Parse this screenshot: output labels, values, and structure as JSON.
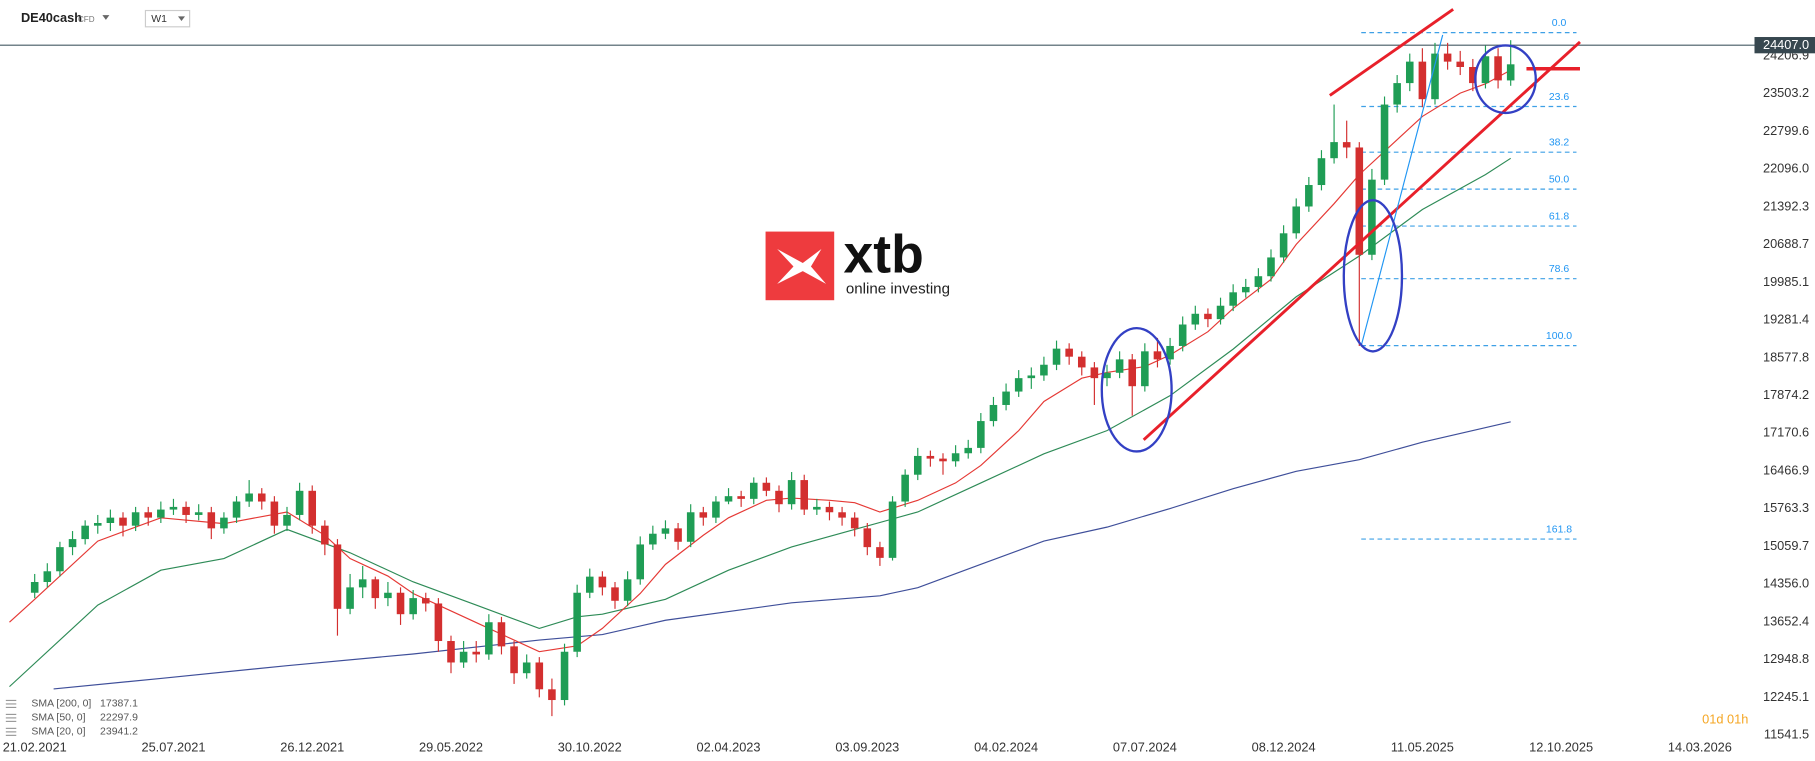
{
  "header": {
    "symbol": "DE40cash",
    "market": "CFD",
    "timeframe": "W1",
    "countdown": "01d 01h"
  },
  "logo": {
    "brand": "xtb",
    "tagline": "online investing"
  },
  "chart_data": {
    "type": "candlestick",
    "up_color": "#1f9d55",
    "down_color": "#d32f2f",
    "xlim": [
      -5.5,
      272.1
    ],
    "ylim": [
      11368,
      25248
    ],
    "xticks": [
      {
        "value": 0,
        "label": "21.02.2021"
      },
      {
        "value": 22,
        "label": "25.07.2021"
      },
      {
        "value": 44,
        "label": "26.12.2021"
      },
      {
        "value": 66,
        "label": "29.05.2022"
      },
      {
        "value": 88,
        "label": "30.10.2022"
      },
      {
        "value": 110,
        "label": "02.04.2023"
      },
      {
        "value": 132,
        "label": "03.09.2023"
      },
      {
        "value": 154,
        "label": "04.02.2024"
      },
      {
        "value": 176,
        "label": "07.07.2024"
      },
      {
        "value": 198,
        "label": "08.12.2024"
      },
      {
        "value": 220,
        "label": "11.05.2025"
      },
      {
        "value": 242,
        "label": "12.10.2025"
      },
      {
        "value": 264,
        "label": "14.03.2026"
      }
    ],
    "yticks": [
      11541.5,
      12245.1,
      12948.8,
      13652.4,
      {
        "value": 14356.0,
        "label": "14356.0"
      },
      15059.7,
      15763.3,
      16466.9,
      17170.6,
      17874.2,
      18577.8,
      19281.4,
      19985.1,
      20688.7,
      21392.3,
      {
        "value": 22096.0,
        "label": "22096.0"
      },
      22799.6,
      23503.2,
      24206.9
    ],
    "current_price": {
      "value": 24407.0,
      "label": "24407.0"
    },
    "fib": {
      "from": 18806,
      "to": 24641,
      "levels": [
        {
          "value": 0,
          "label": "0.0"
        },
        23.6,
        38.2,
        {
          "value": 50,
          "label": "50.0"
        },
        61.8,
        78.6,
        {
          "value": 100,
          "label": "100.0"
        },
        161.8
      ]
    },
    "x": [
      0,
      2,
      4,
      6,
      8,
      10,
      12,
      14,
      16,
      18,
      20,
      22,
      24,
      26,
      28,
      30,
      32,
      34,
      36,
      38,
      40,
      42,
      44,
      46,
      48,
      50,
      52,
      54,
      56,
      58,
      60,
      62,
      64,
      66,
      68,
      70,
      72,
      74,
      76,
      78,
      80,
      82,
      84,
      86,
      88,
      90,
      92,
      94,
      96,
      98,
      100,
      102,
      104,
      106,
      108,
      110,
      112,
      114,
      116,
      118,
      120,
      122,
      124,
      126,
      128,
      130,
      132,
      134,
      136,
      138,
      140,
      142,
      144,
      146,
      148,
      150,
      152,
      154,
      156,
      158,
      160,
      162,
      164,
      166,
      168,
      170,
      172,
      174,
      176,
      178,
      180,
      182,
      184,
      186,
      188,
      190,
      192,
      194,
      196,
      198,
      200,
      202,
      204,
      206,
      208,
      210,
      212,
      214,
      216,
      218,
      220,
      222,
      224,
      226,
      228,
      230,
      232,
      234
    ],
    "open": [
      14200,
      14400,
      14600,
      15050,
      15200,
      15450,
      15500,
      15600,
      15450,
      15700,
      15600,
      15750,
      15800,
      15650,
      15700,
      15400,
      15600,
      15900,
      16050,
      15900,
      15450,
      15650,
      16100,
      15450,
      15100,
      13900,
      14300,
      14450,
      14100,
      14200,
      13800,
      14100,
      14000,
      13300,
      12900,
      13100,
      13050,
      13650,
      13200,
      12700,
      12900,
      12400,
      12200,
      13100,
      14200,
      14500,
      14300,
      14050,
      14450,
      15100,
      15300,
      15400,
      15150,
      15700,
      15600,
      15900,
      16000,
      15950,
      16250,
      16100,
      15850,
      16300,
      15750,
      15800,
      15700,
      15600,
      15400,
      15050,
      14850,
      15900,
      16400,
      16750,
      16700,
      16650,
      16800,
      16900,
      17400,
      17700,
      17950,
      18200,
      18250,
      18450,
      18750,
      18600,
      18400,
      18200,
      18300,
      18550,
      18050,
      18700,
      18550,
      18800,
      19200,
      19400,
      19300,
      19550,
      19800,
      19900,
      20100,
      20450,
      20900,
      21400,
      21800,
      22300,
      22600,
      22500,
      20500,
      21900,
      23300,
      23700,
      24100,
      23400,
      24250,
      24100,
      24000,
      23700,
      24200,
      23750
    ],
    "high": [
      14550,
      14750,
      15150,
      15350,
      15550,
      15650,
      15750,
      15700,
      15800,
      15800,
      15900,
      15950,
      15900,
      15850,
      15800,
      15700,
      16000,
      16300,
      16150,
      16000,
      15800,
      16250,
      16200,
      15550,
      15200,
      14550,
      14700,
      14500,
      14400,
      14300,
      14250,
      14200,
      14100,
      13400,
      13300,
      13300,
      13800,
      13750,
      13300,
      13050,
      13000,
      12600,
      13250,
      14350,
      14650,
      14600,
      14400,
      14600,
      15250,
      15450,
      15550,
      15500,
      15850,
      15800,
      16000,
      16150,
      16100,
      16350,
      16350,
      16200,
      16450,
      16400,
      15950,
      15900,
      15800,
      15700,
      15500,
      15150,
      16000,
      16500,
      16900,
      16850,
      16800,
      16950,
      17050,
      17550,
      17850,
      18100,
      18350,
      18400,
      18600,
      18900,
      18850,
      18700,
      18500,
      18450,
      18700,
      18650,
      18850,
      18950,
      18950,
      19350,
      19550,
      19500,
      19700,
      19950,
      20050,
      20250,
      20600,
      21050,
      21550,
      21950,
      22450,
      23300,
      23000,
      22600,
      22100,
      23450,
      23850,
      24250,
      24350,
      24450,
      24450,
      24300,
      24150,
      24400,
      24350,
      24500
    ],
    "low": [
      14100,
      14300,
      14500,
      14900,
      15100,
      15300,
      15350,
      15250,
      15350,
      15450,
      15500,
      15650,
      15500,
      15550,
      15200,
      15300,
      15500,
      15800,
      15750,
      15300,
      15350,
      15550,
      15300,
      14900,
      13400,
      13800,
      14100,
      13900,
      13950,
      13600,
      13700,
      13850,
      13100,
      12700,
      12800,
      12900,
      12950,
      13050,
      12500,
      12600,
      12250,
      11900,
      12100,
      13000,
      14100,
      14150,
      13900,
      13950,
      14350,
      15000,
      15200,
      15000,
      15050,
      15450,
      15500,
      15850,
      15800,
      15850,
      16000,
      15700,
      15750,
      15650,
      15650,
      15550,
      15450,
      15250,
      14900,
      14700,
      14800,
      15800,
      16300,
      16550,
      16400,
      16550,
      16700,
      16800,
      17300,
      17600,
      17850,
      18000,
      18150,
      18350,
      18450,
      18250,
      17700,
      18050,
      18200,
      17500,
      17950,
      18400,
      18450,
      18700,
      19100,
      19150,
      19200,
      19450,
      19700,
      19800,
      20000,
      20350,
      20800,
      21300,
      21700,
      22200,
      22300,
      18800,
      20400,
      21800,
      23150,
      23550,
      23250,
      23300,
      23950,
      23850,
      23550,
      23600,
      23600,
      23650
    ],
    "close": [
      14400,
      14600,
      15050,
      15200,
      15450,
      15500,
      15600,
      15450,
      15700,
      15600,
      15750,
      15800,
      15650,
      15700,
      15400,
      15600,
      15900,
      16050,
      15900,
      15450,
      15650,
      16100,
      15450,
      15100,
      13900,
      14300,
      14450,
      14100,
      14200,
      13800,
      14100,
      14000,
      13300,
      12900,
      13100,
      13050,
      13650,
      13200,
      12700,
      12900,
      12400,
      12200,
      13100,
      14200,
      14500,
      14300,
      14050,
      14450,
      15100,
      15300,
      15400,
      15150,
      15700,
      15600,
      15900,
      16000,
      15950,
      16250,
      16100,
      15850,
      16300,
      15750,
      15800,
      15700,
      15600,
      15400,
      15050,
      14850,
      15900,
      16400,
      16750,
      16700,
      16650,
      16800,
      16900,
      17400,
      17700,
      17950,
      18200,
      18250,
      18450,
      18750,
      18600,
      18400,
      18200,
      18300,
      18550,
      18050,
      18700,
      18550,
      18800,
      19200,
      19400,
      19300,
      19550,
      19800,
      19900,
      20100,
      20450,
      20900,
      21400,
      21800,
      22300,
      22600,
      22500,
      20500,
      21900,
      23300,
      23700,
      24100,
      23400,
      24250,
      24100,
      24000,
      23700,
      24200,
      23750,
      24050
    ],
    "series": [
      {
        "name": "SMA [200, 0]",
        "color": "#3f4f9a",
        "x": [
          3,
          20,
          40,
          60,
          80,
          90,
          100,
          120,
          134,
          140,
          150,
          160,
          170,
          180,
          190,
          200,
          210,
          220,
          234
        ],
        "values": [
          12407,
          12603,
          12841,
          13058,
          13318,
          13420,
          13687,
          14012,
          14143,
          14295,
          14729,
          15163,
          15423,
          15770,
          16139,
          16464,
          16681,
          17006,
          17387.1
        ]
      },
      {
        "name": "SMA [50, 0]",
        "color": "#2e8b57",
        "x": [
          -4,
          10,
          20,
          30,
          40,
          50,
          60,
          70,
          80,
          86,
          90,
          100,
          110,
          120,
          130,
          140,
          150,
          160,
          170,
          180,
          190,
          200,
          210,
          220,
          230,
          234
        ],
        "values": [
          12450,
          13970,
          14620,
          14837,
          15380,
          14945,
          14403,
          13970,
          13535,
          13752,
          13800,
          14078,
          14620,
          15054,
          15380,
          15705,
          16247,
          16789,
          17222,
          17873,
          18741,
          19717,
          20476,
          21344,
          21994,
          22297.9
        ]
      },
      {
        "name": "SMA [20, 0]",
        "color": "#e53935",
        "x": [
          -4,
          0,
          10,
          20,
          30,
          40,
          46,
          50,
          56,
          60,
          66,
          70,
          76,
          80,
          86,
          90,
          96,
          100,
          106,
          110,
          116,
          120,
          126,
          130,
          134,
          140,
          146,
          150,
          156,
          160,
          166,
          170,
          176,
          180,
          186,
          190,
          196,
          200,
          206,
          210,
          216,
          220,
          226,
          230,
          234
        ],
        "values": [
          13650,
          14078,
          15163,
          15597,
          15488,
          15705,
          15271,
          14837,
          14511,
          14186,
          13861,
          13644,
          13318,
          13102,
          13210,
          13535,
          14186,
          14729,
          15271,
          15597,
          15922,
          15965,
          15922,
          15878,
          15705,
          15922,
          16247,
          16573,
          17222,
          17765,
          18199,
          18307,
          18416,
          18632,
          19066,
          19500,
          20042,
          20693,
          21452,
          21994,
          22645,
          23079,
          23513,
          23686,
          23941.2
        ]
      }
    ]
  }
}
